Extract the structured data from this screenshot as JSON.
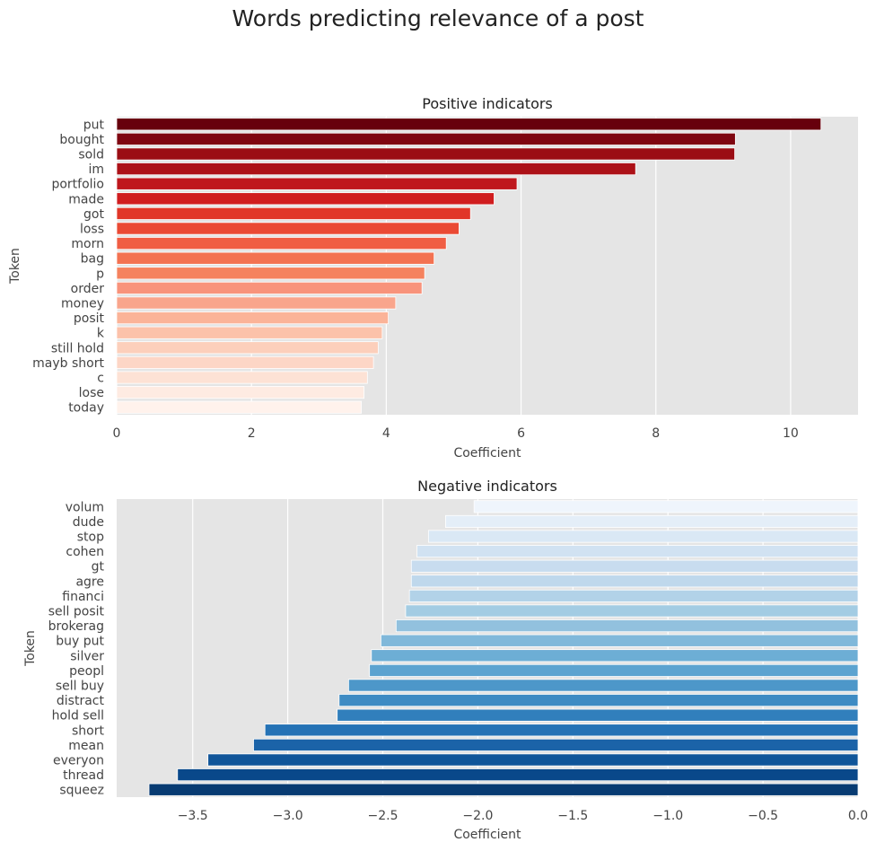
{
  "figure": {
    "title": "Words predicting relevance of a post"
  },
  "chart_data": [
    {
      "type": "bar",
      "orientation": "horizontal",
      "title": "Positive indicators",
      "xlabel": "Coefficient",
      "ylabel": "Token",
      "xlim": [
        0,
        11
      ],
      "xticks": [
        0,
        2,
        4,
        6,
        8,
        10
      ],
      "xtick_labels": [
        "0",
        "2",
        "4",
        "6",
        "8",
        "10"
      ],
      "grid": true,
      "palette": "Reds (dark to light)",
      "categories": [
        "put",
        "bought",
        "sold",
        "im",
        "portfolio",
        "made",
        "got",
        "loss",
        "morn",
        "bag",
        "p",
        "order",
        "money",
        "posit",
        "k",
        "still hold",
        "mayb short",
        "c",
        "lose",
        "today"
      ],
      "values": [
        10.45,
        9.18,
        9.17,
        7.7,
        5.94,
        5.6,
        5.25,
        5.08,
        4.89,
        4.71,
        4.57,
        4.53,
        4.14,
        4.03,
        3.94,
        3.88,
        3.81,
        3.72,
        3.67,
        3.63
      ],
      "colors": [
        "#67000d",
        "#7f0611",
        "#9b0d14",
        "#ac1117",
        "#bf171d",
        "#d01d1f",
        "#e13628",
        "#ea4a34",
        "#f05d43",
        "#f37251",
        "#f5825e",
        "#f8937b",
        "#f9a58c",
        "#fbb398",
        "#fcc2aa",
        "#fccfbb",
        "#fdd6c6",
        "#fde2d5",
        "#feebe2",
        "#fff2ec"
      ]
    },
    {
      "type": "bar",
      "orientation": "horizontal",
      "title": "Negative indicators",
      "xlabel": "Coefficient",
      "ylabel": "Token",
      "xlim": [
        -3.9,
        0.0
      ],
      "xticks": [
        -3.5,
        -3.0,
        -2.5,
        -2.0,
        -1.5,
        -1.0,
        -0.5,
        0.0
      ],
      "xtick_labels": [
        "−3.5",
        "−3.0",
        "−2.5",
        "−2.0",
        "−1.5",
        "−1.0",
        "−0.5",
        "0.0"
      ],
      "grid": true,
      "palette": "Blues (light to dark)",
      "categories": [
        "volum",
        "dude",
        "stop",
        "cohen",
        "gt",
        "agre",
        "financi",
        "sell posit",
        "brokerag",
        "buy put",
        "silver",
        "peopl",
        "sell buy",
        "distract",
        "hold sell",
        "short",
        "mean",
        "everyon",
        "thread",
        "squeez"
      ],
      "values": [
        -2.02,
        -2.17,
        -2.26,
        -2.32,
        -2.35,
        -2.35,
        -2.36,
        -2.38,
        -2.43,
        -2.51,
        -2.56,
        -2.57,
        -2.68,
        -2.73,
        -2.74,
        -3.12,
        -3.18,
        -3.42,
        -3.58,
        -3.73
      ],
      "colors": [
        "#eff5fc",
        "#e4eef8",
        "#dae8f5",
        "#d1e2f2",
        "#c8dcef",
        "#bfd8ec",
        "#b2d2e8",
        "#a3cce3",
        "#92c1de",
        "#80b8da",
        "#6daed5",
        "#5ca3d0",
        "#4d97c9",
        "#3e8bc3",
        "#317fbc",
        "#2572b5",
        "#1b63a8",
        "#105599",
        "#09488a",
        "#083b72"
      ]
    }
  ]
}
